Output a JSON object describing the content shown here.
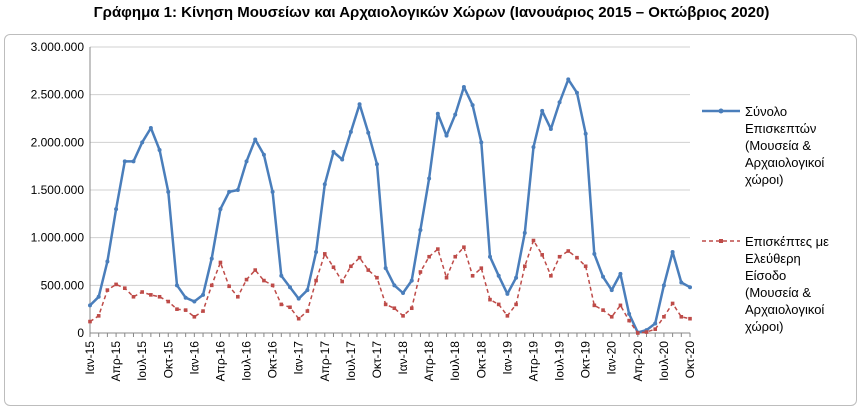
{
  "chart_data": {
    "type": "line",
    "title": "Γράφημα 1: Κίνηση Μουσείων και Αρχαιολογικών Χώρων (Ιανουάριος 2015 – Οκτώβριος 2020)",
    "xlabel": "",
    "ylabel": "",
    "ylim": [
      0,
      3000000
    ],
    "yticks": [
      "3.000.000",
      "2.500.000",
      "2.000.000",
      "1.500.000",
      "1.000.000",
      "500.000",
      "0"
    ],
    "ytick_values": [
      3000000,
      2500000,
      2000000,
      1500000,
      1000000,
      500000,
      0
    ],
    "xtick_labels": [
      "Ιαν-15",
      "Απρ-15",
      "Ιουλ-15",
      "Οκτ-15",
      "Ιαν-16",
      "Απρ-16",
      "Ιουλ-16",
      "Οκτ-16",
      "Ιαν-17",
      "Απρ-17",
      "Ιουλ-17",
      "Οκτ-17",
      "Ιαν-18",
      "Απρ-18",
      "Ιουλ-18",
      "Οκτ-18",
      "Ιαν-19",
      "Απρ-19",
      "Ιουλ-19",
      "Οκτ-19",
      "Ιαν-20",
      "Απρ-20",
      "Ιουλ-20",
      "Οκτ-20"
    ],
    "grid": "horizontal",
    "legend_position": "right",
    "series": [
      {
        "name_lines": [
          "Σύνολο",
          "Επισκεπτών",
          "(Μουσεία &",
          "Αρχαιολογικοί",
          "χώροι)"
        ],
        "color": "#4a7ebb",
        "style": "solid",
        "values": [
          290000,
          380000,
          750000,
          1300000,
          1800000,
          1800000,
          2000000,
          2150000,
          1920000,
          1480000,
          500000,
          370000,
          330000,
          400000,
          780000,
          1300000,
          1480000,
          1500000,
          1800000,
          2030000,
          1870000,
          1480000,
          600000,
          480000,
          360000,
          450000,
          850000,
          1560000,
          1900000,
          1820000,
          2110000,
          2400000,
          2100000,
          1770000,
          680000,
          500000,
          420000,
          550000,
          1080000,
          1620000,
          2300000,
          2070000,
          2290000,
          2580000,
          2390000,
          2000000,
          800000,
          600000,
          410000,
          580000,
          1050000,
          1950000,
          2330000,
          2140000,
          2420000,
          2660000,
          2520000,
          2090000,
          830000,
          590000,
          450000,
          620000,
          200000,
          5000,
          30000,
          100000,
          500000,
          850000,
          530000,
          480000
        ]
      },
      {
        "name_lines": [
          "Επισκέπτες με",
          "Ελεύθερη",
          "Είσοδο",
          "(Μουσεία &",
          "Αρχαιολογικοί",
          "χώροι)"
        ],
        "color": "#be4b48",
        "style": "dashed",
        "values": [
          120000,
          180000,
          450000,
          510000,
          470000,
          380000,
          430000,
          400000,
          380000,
          330000,
          250000,
          240000,
          170000,
          230000,
          500000,
          740000,
          490000,
          380000,
          560000,
          660000,
          550000,
          500000,
          300000,
          270000,
          150000,
          230000,
          550000,
          830000,
          690000,
          540000,
          700000,
          790000,
          660000,
          580000,
          300000,
          260000,
          180000,
          260000,
          640000,
          800000,
          880000,
          580000,
          800000,
          900000,
          600000,
          680000,
          350000,
          300000,
          180000,
          300000,
          700000,
          970000,
          820000,
          600000,
          800000,
          860000,
          790000,
          700000,
          290000,
          240000,
          170000,
          290000,
          130000,
          0,
          10000,
          40000,
          170000,
          310000,
          170000,
          150000
        ]
      }
    ]
  }
}
